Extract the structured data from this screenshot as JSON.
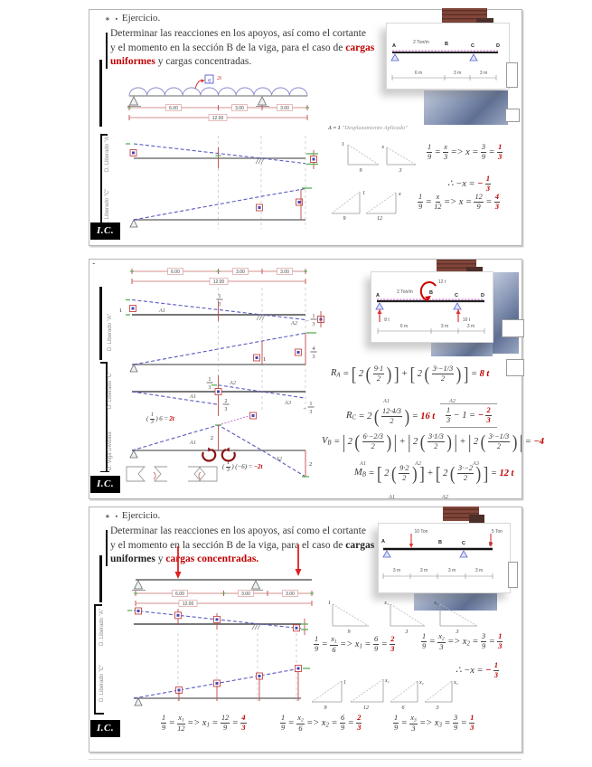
{
  "nums": {
    "one": "1",
    "two": "2",
    "three": "3",
    "four": "4",
    "minus": "−"
  },
  "panels": [
    {
      "bullet": "∗ ▪",
      "title": "Ejercicio.",
      "text": {
        "l1": "Determinar las reacciones en los apoyos, así como el cortante",
        "l2": "y el momento en la sección B de la viga, para el caso de ",
        "hl2": "cargas",
        "hl3": "uniformes",
        "tail": " y cargas concentradas."
      },
      "beam": {
        "q": "q",
        "q_val": "2t",
        "dims": [
          "6.00",
          "3.00",
          "3.00"
        ],
        "total": "12.00"
      },
      "il_a_label": "D. Liberado \"A\"",
      "il_c_label": "C. Liberado \"C\"",
      "note_head": "Δ = 1",
      "note_tail": " \"Desplazamiento Aplicado\"",
      "tri": {
        "t1h": "1",
        "t1b": "9",
        "t2h": "x",
        "t2b": "3",
        "t3h": "1",
        "t3b": "9",
        "t4h": "x",
        "t4b": "12"
      },
      "f1": "frac:1:9 = frac:x:3 => x = frac:3:9 = !frac:1:3",
      "f1b": "∴ −x = !− !frac:1:3",
      "f2": "frac:1:9 = frac:x:12 => x = frac:12:9 = !frac:4:3",
      "ic": "I.C.",
      "inset": {
        "letters": [
          "A",
          "B",
          "C",
          "D"
        ],
        "load": "2 Ton/m",
        "dims": [
          "6 m",
          "3 m",
          "3 m"
        ]
      }
    },
    {
      "bullet": "⁃",
      "beam": {
        "dims": [
          "6.00",
          "3.00",
          "3.00"
        ],
        "total": "12.00"
      },
      "il_a_label": "D. Liberado \"A\"",
      "il_c_label": "D. Liberado \"C\"",
      "il_v_label": "D. Viga Dividida",
      "il_a": {
        "one": "1",
        "a1": "A1",
        "a2": "A2"
      },
      "il_c": {
        "one": "1"
      },
      "il_v": {
        "a1": "A1",
        "a2": "A2",
        "a3": "A3"
      },
      "il_m": {
        "a1": "A1",
        "a2": "A2",
        "two": "2",
        "two2": "2",
        "lbl_pos": "( frac:1:3 ) 6 = !2t",
        "lbl_neg": "( frac:1:3 ) (−6) = !−2t"
      },
      "formulas": {
        "ra": "R_A = big[ 2 big( frac:9·1:2 big) big] + big[ 2 big( frac:3·−1/3:2 big) big] = !8 !t",
        "rc": "R_C = 2 big( frac:12·4/3:2 big) = !16 !t",
        "cell": "frac:1:3 − 1 = !− !frac:2:3",
        "vb": "V_B = big| 2 big( frac:6·−2/3:2 big) big| + big| 2 big( frac:3·1/3:2 big) big| + big| 2 big( frac:3·−1/3:2 big) big| = !−4",
        "mb": "M_B = big[ 2 big( frac:9·2:2 big) big] + big[ 2 big( frac:3·−2:2 big) big] = !12 !t"
      },
      "subs": {
        "a1": "A1",
        "a2": "A2",
        "a3": "A3",
        "b1": "A1",
        "b2": "A2",
        "c1": "A1",
        "c2": "A2"
      },
      "ic": "I.C.",
      "inset": {
        "letters": [
          "A",
          "B",
          "C",
          "D"
        ],
        "load": "2 Ton/m",
        "moment": "12 t",
        "r1": "8 t",
        "r2": "16 t",
        "dims": [
          "6 m",
          "3 m",
          "3 m"
        ]
      }
    },
    {
      "bullet": "∗ ▪",
      "title": "Ejercicio.",
      "text": {
        "l1": "Determinar las reacciones en los apoyos, así como el cortante",
        "l2": "y el momento en la sección B de la viga, para el caso de ",
        "hl2": "cargas",
        "hl3": "uniformes",
        "mid": " y ",
        "red3": "cargas concentradas."
      },
      "beam": {
        "dims": [
          "6.00",
          "3.00",
          "3.00"
        ],
        "total": "12.00"
      },
      "il_a_label": "D. Liberado \"A\"",
      "il_c_label": "D. Liberado \"C\"",
      "tri1": {
        "t1h": "1",
        "t1b": "9",
        "t2h": "x₁",
        "t2b": "3",
        "t3h": "x₂",
        "t3b": "3"
      },
      "tri2": {
        "t1h": "1",
        "t1b": "9",
        "t2h": "x₁",
        "t2b": "12",
        "t3h": "x₂",
        "t3b": "6",
        "t4h": "x₃",
        "t4b": "3"
      },
      "f1": "frac:1:9 = frac:x_1:6 => x_1 = frac:6:9 = !frac:2:3",
      "f2": "frac:1:9 = frac:x_2:3 => x_2 = frac:3:9 = !frac:1:3",
      "f3": "∴ −x = !− !frac:1:3",
      "b1": "frac:1:9 = frac:x_1:12 => x_1 = frac:12:9 = !frac:4:3",
      "b2": "frac:1:9 = frac:x_2:6 => x_2 = frac:6:9 = !frac:2:3",
      "b3": "frac:1:9 = frac:x_3:3 => x_3 = frac:3:9 = !frac:1:3",
      "ic": "I.C.",
      "inset": {
        "letters": [
          "A",
          "B",
          "C",
          "D"
        ],
        "load1": "10 Ton",
        "load2": "5 Ton",
        "dims": [
          "3 m",
          "3 m",
          "3 m",
          "3 m"
        ]
      }
    }
  ]
}
